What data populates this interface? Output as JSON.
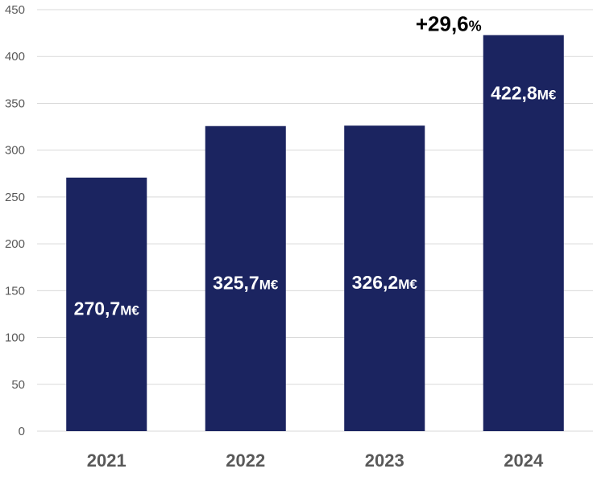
{
  "chart_data": {
    "type": "bar",
    "title": "",
    "xlabel": "",
    "ylabel": "",
    "categories": [
      "2021",
      "2022",
      "2023",
      "2024"
    ],
    "values": [
      270.7,
      325.7,
      326.2,
      422.8
    ],
    "data_labels": [
      {
        "value": "270,7",
        "unit": "M€"
      },
      {
        "value": "325,7",
        "unit": "M€"
      },
      {
        "value": "326,2",
        "unit": "M€"
      },
      {
        "value": "422,8",
        "unit": "M€"
      }
    ],
    "ylim": [
      0,
      450
    ],
    "yticks": [
      "0",
      "50",
      "100",
      "150",
      "200",
      "250",
      "300",
      "350",
      "400",
      "450"
    ],
    "grid": true,
    "legend": "none",
    "annotation": {
      "value": "+29,6",
      "unit": "%"
    },
    "bar_color": "#1b2460",
    "grid_color": "#d9d9d9"
  }
}
